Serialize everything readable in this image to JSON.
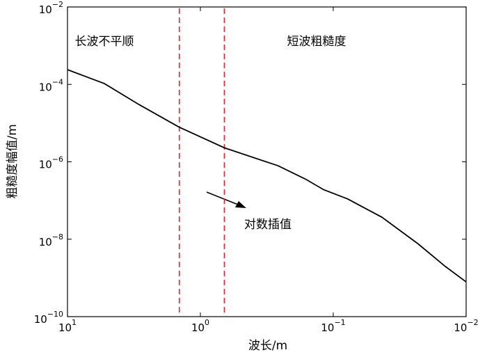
{
  "chart_data": {
    "type": "line",
    "xlabel": "波长/m",
    "ylabel": "粗糙度幅值/m",
    "xscale": "log",
    "yscale": "log",
    "xlim": [
      10,
      0.01
    ],
    "ylim": [
      1e-10,
      0.01
    ],
    "xticks": [
      {
        "value": 10,
        "label": "101"
      },
      {
        "value": 1,
        "label": "100"
      },
      {
        "value": 0.1,
        "label": "10−1"
      },
      {
        "value": 0.01,
        "label": "10−2"
      }
    ],
    "yticks": [
      {
        "value": 1e-10,
        "label": "10−10"
      },
      {
        "value": 1e-08,
        "label": "10−8"
      },
      {
        "value": 1e-06,
        "label": "10−6"
      },
      {
        "value": 0.0001,
        "label": "10−4"
      },
      {
        "value": 0.01,
        "label": "10−2"
      }
    ],
    "x": [
      10,
      5.28,
      2.89,
      1.44,
      0.66,
      0.26,
      0.16,
      0.118,
      0.078,
      0.043,
      0.023,
      0.0144,
      0.01
    ],
    "series": [
      {
        "color": "#000000",
        "values": [
          0.00024,
          0.000105,
          3e-05,
          7.8e-06,
          2.3e-06,
          7.9e-07,
          3.5e-07,
          1.9e-07,
          1.1e-07,
          3.7e-08,
          7.6e-09,
          2e-09,
          7.9e-10
        ]
      }
    ],
    "vlines": {
      "values": [
        1.44,
        0.66
      ],
      "color": "#e8262a"
    },
    "annotations": [
      "长波不平顺",
      "短波粗糙度",
      "对数插值"
    ]
  }
}
